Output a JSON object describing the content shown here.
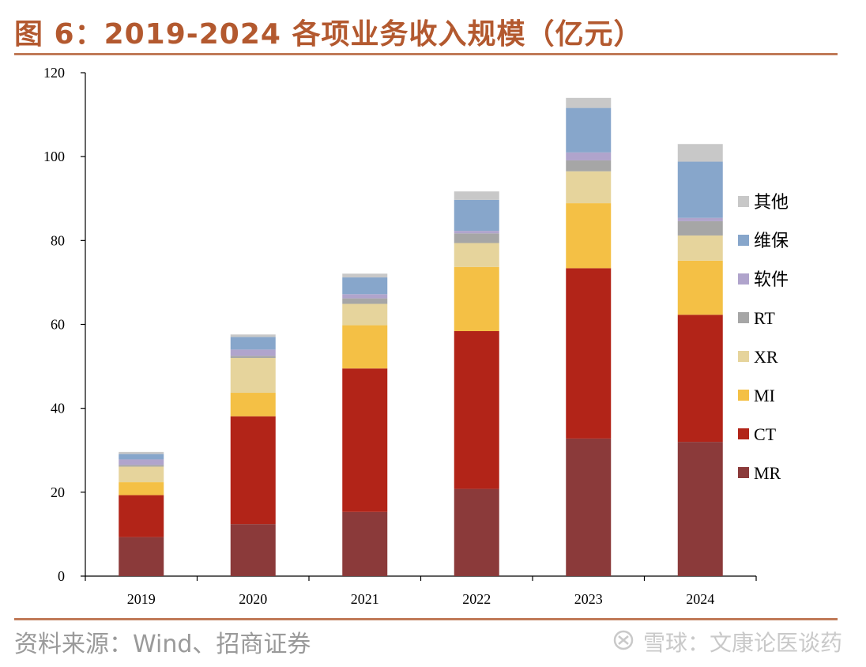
{
  "header": {
    "title": "图 6：2019-2024 各项业务收入规模（亿元）"
  },
  "footer": {
    "source": "资料来源：Wind、招商证券"
  },
  "watermark": {
    "icon": "snowball-icon",
    "text": "雪球：文康论医谈药"
  },
  "chart_data": {
    "type": "bar",
    "stacked": true,
    "categories": [
      "2019",
      "2020",
      "2021",
      "2022",
      "2023",
      "2024"
    ],
    "series": [
      {
        "name": "MR",
        "color": "#8b3a3a",
        "values": [
          9.3,
          12.4,
          15.3,
          20.8,
          32.8,
          32.0
        ]
      },
      {
        "name": "CT",
        "color": "#b22418",
        "values": [
          10.0,
          25.7,
          34.2,
          37.6,
          40.6,
          30.3
        ]
      },
      {
        "name": "MI",
        "color": "#f4c045",
        "values": [
          3.1,
          5.6,
          10.3,
          15.3,
          15.5,
          12.9
        ]
      },
      {
        "name": "XR",
        "color": "#e6d49c",
        "values": [
          3.7,
          8.3,
          5.1,
          5.7,
          7.6,
          6.0
        ]
      },
      {
        "name": "RT",
        "color": "#a6a6a6",
        "values": [
          0.4,
          0.5,
          1.3,
          2.3,
          2.6,
          3.4
        ]
      },
      {
        "name": "软件",
        "color": "#b0a4cc",
        "values": [
          1.3,
          1.5,
          1.0,
          0.6,
          1.9,
          0.8
        ]
      },
      {
        "name": "维保",
        "color": "#87a6cb",
        "values": [
          1.3,
          3.0,
          4.0,
          7.4,
          10.6,
          13.4
        ]
      },
      {
        "name": "其他",
        "color": "#c8c8c8",
        "values": [
          0.5,
          0.6,
          0.9,
          2.0,
          2.4,
          4.2
        ]
      }
    ],
    "ylim": [
      0,
      120
    ],
    "yticks": [
      0,
      20,
      40,
      60,
      80,
      100,
      120
    ],
    "xlabel": "",
    "ylabel": "",
    "grid": false,
    "legend": {
      "placement": "right",
      "order": [
        "其他",
        "维保",
        "软件",
        "RT",
        "XR",
        "MI",
        "CT",
        "MR"
      ]
    }
  }
}
